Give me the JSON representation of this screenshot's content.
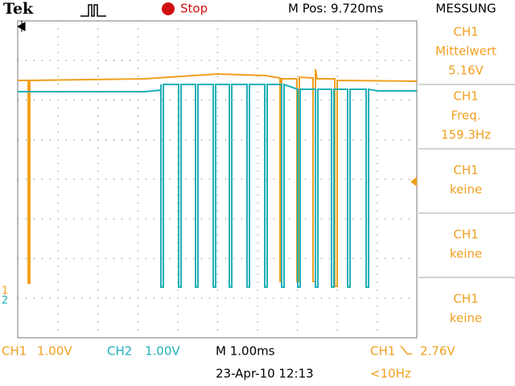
{
  "header": {
    "brand": "Tek",
    "status": "Stop",
    "position": "M Pos: 9.720ms",
    "menu_title": "MESSUNG"
  },
  "measurements": [
    {
      "channel": "CH1",
      "label": "Mittelwert",
      "value": "5.16V"
    },
    {
      "channel": "CH1",
      "label": "Freq.",
      "value": "159.3Hz"
    },
    {
      "channel": "CH1",
      "label": "keine"
    },
    {
      "channel": "CH1",
      "label": "keine"
    },
    {
      "channel": "CH1",
      "label": "keine"
    }
  ],
  "markers": {
    "ch1": "1",
    "ch2": "2"
  },
  "footer": {
    "ch1": "CH1",
    "ch1_scale": "1.00V",
    "ch2": "CH2",
    "ch2_scale": "1.00V",
    "timebase": "M 1.00ms",
    "trigger_source": "CH1",
    "trigger_level": "2.76V",
    "date": "23-Apr-10 12:13",
    "trigger_freq": "<10Hz"
  }
}
